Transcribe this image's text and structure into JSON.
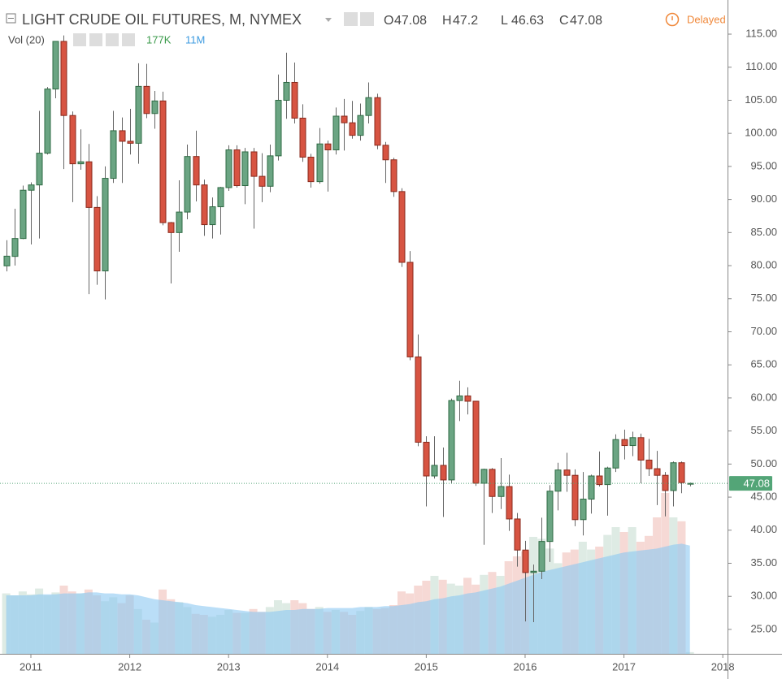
{
  "chart_data": {
    "type": "candlestick",
    "title": "LIGHT CRUDE OIL FUTURES, M, NYMEX",
    "ohlc_labels": [
      "O",
      "H",
      "L",
      "C"
    ],
    "status": "Delayed",
    "volume_legend": {
      "label": "Vol (20)",
      "volume": "177K",
      "ma": "11M"
    },
    "x": [
      2010.75,
      2010.833,
      2010.917,
      2011.0,
      2011.083,
      2011.167,
      2011.25,
      2011.333,
      2011.417,
      2011.5,
      2011.583,
      2011.667,
      2011.75,
      2011.833,
      2011.917,
      2012.0,
      2012.083,
      2012.167,
      2012.25,
      2012.333,
      2012.417,
      2012.5,
      2012.583,
      2012.667,
      2012.75,
      2012.833,
      2012.917,
      2013.0,
      2013.083,
      2013.167,
      2013.25,
      2013.333,
      2013.417,
      2013.5,
      2013.583,
      2013.667,
      2013.75,
      2013.833,
      2013.917,
      2014.0,
      2014.083,
      2014.167,
      2014.25,
      2014.333,
      2014.417,
      2014.5,
      2014.583,
      2014.667,
      2014.75,
      2014.833,
      2014.917,
      2015.0,
      2015.083,
      2015.167,
      2015.25,
      2015.333,
      2015.417,
      2015.5,
      2015.583,
      2015.667,
      2015.75,
      2015.833,
      2015.917,
      2016.0,
      2016.083,
      2016.167,
      2016.25,
      2016.333,
      2016.417,
      2016.5,
      2016.583,
      2016.667,
      2016.75,
      2016.833,
      2016.917,
      2017.0,
      2017.083,
      2017.167,
      2017.25,
      2017.333,
      2017.417,
      2017.5,
      2017.583,
      2017.667
    ],
    "open": [
      79.97,
      81.4,
      84.1,
      91.4,
      92.2,
      97.0,
      106.7,
      113.9,
      102.7,
      95.4,
      95.7,
      88.8,
      79.2,
      93.2,
      100.4,
      98.8,
      98.5,
      107.1,
      103.0,
      104.9,
      86.5,
      85.0,
      88.1,
      96.5,
      92.2,
      86.2,
      88.9,
      91.8,
      97.5,
      92.1,
      97.2,
      93.5,
      92.0,
      96.6,
      105.0,
      107.7,
      102.3,
      96.4,
      92.7,
      98.4,
      97.5,
      102.6,
      101.6,
      99.7,
      102.7,
      105.4,
      98.2,
      96.0,
      91.2,
      80.5,
      66.2,
      53.3,
      48.2,
      49.8,
      47.6,
      59.6,
      60.3,
      59.5,
      47.1,
      49.2,
      45.1,
      46.6,
      41.7,
      37.0,
      33.6,
      33.8,
      38.3,
      45.9,
      49.1,
      48.3,
      41.6,
      44.7,
      48.2,
      46.9,
      49.4,
      53.7,
      52.8,
      54.0,
      50.6,
      49.3,
      48.3,
      46.0,
      50.2,
      47.08
    ],
    "high": [
      83.85,
      88.6,
      92.1,
      92.6,
      103.4,
      107.0,
      113.9,
      114.8,
      103.3,
      100.6,
      98.4,
      90.5,
      95.0,
      103.4,
      102.4,
      103.7,
      110.6,
      110.5,
      106.4,
      106.3,
      86.6,
      92.9,
      98.3,
      100.4,
      93.0,
      90.3,
      91.9,
      98.2,
      98.2,
      97.8,
      97.8,
      97.0,
      98.3,
      108.9,
      112.2,
      110.7,
      104.4,
      96.9,
      100.8,
      98.9,
      103.9,
      105.2,
      104.9,
      104.5,
      107.7,
      106.0,
      98.7,
      96.3,
      91.7,
      82.2,
      69.6,
      54.2,
      54.2,
      52.5,
      59.9,
      62.6,
      61.6,
      59.5,
      49.3,
      49.4,
      50.9,
      48.4,
      42.6,
      38.4,
      34.8,
      41.9,
      46.8,
      50.2,
      51.7,
      49.2,
      48.8,
      48.4,
      51.9,
      49.6,
      54.5,
      55.2,
      54.9,
      54.6,
      53.8,
      52.0,
      48.8,
      50.4,
      50.4,
      47.2
    ],
    "low": [
      79.13,
      80.0,
      84.0,
      83.2,
      84.1,
      96.8,
      105.3,
      94.6,
      89.6,
      94.5,
      75.7,
      77.1,
      74.9,
      92.5,
      92.5,
      96.8,
      95.4,
      102.3,
      100.7,
      86.1,
      77.3,
      82.1,
      87.0,
      89.7,
      84.5,
      84.1,
      84.7,
      91.3,
      91.8,
      89.3,
      85.6,
      89.6,
      91.1,
      95.9,
      102.2,
      101.5,
      95.7,
      91.8,
      92.4,
      91.2,
      96.8,
      97.4,
      99.2,
      98.9,
      101.5,
      97.6,
      92.5,
      90.4,
      79.8,
      65.7,
      52.7,
      43.6,
      47.8,
      42.0,
      47.1,
      56.5,
      57.5,
      46.7,
      37.8,
      42.6,
      43.2,
      39.9,
      34.5,
      26.2,
      26.1,
      32.6,
      35.2,
      43.0,
      45.8,
      40.6,
      39.2,
      42.5,
      46.6,
      42.2,
      48.8,
      50.7,
      51.2,
      47.1,
      48.2,
      43.8,
      42.1,
      43.6,
      45.6,
      46.63
    ],
    "close": [
      81.43,
      84.1,
      91.4,
      92.2,
      97.0,
      106.7,
      113.9,
      102.7,
      95.4,
      95.7,
      88.8,
      79.2,
      93.2,
      100.4,
      98.8,
      98.5,
      107.1,
      103.0,
      104.9,
      86.5,
      85.0,
      88.1,
      96.5,
      92.2,
      86.2,
      88.9,
      91.8,
      97.5,
      92.1,
      97.2,
      93.5,
      92.0,
      96.6,
      105.0,
      107.7,
      102.3,
      96.4,
      92.7,
      98.4,
      97.5,
      102.6,
      101.6,
      99.7,
      102.7,
      105.4,
      98.2,
      96.0,
      91.2,
      80.5,
      66.2,
      53.3,
      48.2,
      49.8,
      47.6,
      59.6,
      60.3,
      59.5,
      47.1,
      49.2,
      45.1,
      46.6,
      41.7,
      37.0,
      33.6,
      33.8,
      38.3,
      45.9,
      49.1,
      48.3,
      41.6,
      44.7,
      48.2,
      46.9,
      49.4,
      53.7,
      52.8,
      54.0,
      50.6,
      49.3,
      48.3,
      46.0,
      50.2,
      47.2,
      47.08
    ],
    "volume": [
      6.2,
      6.0,
      6.4,
      6.1,
      6.7,
      6.0,
      6.3,
      7.0,
      6.4,
      6.2,
      6.6,
      6.0,
      5.4,
      5.8,
      5.2,
      6.0,
      4.6,
      3.5,
      3.2,
      6.6,
      5.6,
      5.3,
      4.8,
      4.1,
      4.0,
      3.8,
      4.0,
      4.5,
      4.2,
      4.2,
      4.6,
      4.3,
      4.8,
      5.5,
      5.2,
      5.5,
      5.2,
      4.6,
      4.8,
      4.3,
      4.5,
      4.3,
      4.0,
      4.4,
      4.8,
      4.6,
      4.7,
      5.0,
      6.4,
      6.2,
      7.0,
      7.5,
      8.0,
      7.6,
      7.2,
      7.0,
      7.8,
      7.1,
      8.1,
      8.4,
      8.0,
      9.5,
      10.0,
      10.5,
      12.0,
      11.8,
      10.8,
      9.3,
      10.4,
      10.7,
      11.5,
      10.7,
      11.0,
      12.2,
      13.0,
      12.5,
      13.0,
      11.5,
      12.1,
      14.0,
      16.5,
      14.0,
      13.6,
      0.177
    ],
    "volume_ma": [
      6.0,
      6.0,
      6.0,
      6.0,
      6.1,
      6.1,
      6.1,
      6.2,
      6.2,
      6.2,
      6.3,
      6.3,
      6.2,
      6.2,
      6.1,
      6.1,
      6.0,
      5.8,
      5.6,
      5.5,
      5.4,
      5.3,
      5.2,
      5.0,
      4.9,
      4.8,
      4.7,
      4.6,
      4.5,
      4.4,
      4.3,
      4.3,
      4.3,
      4.4,
      4.5,
      4.5,
      4.6,
      4.6,
      4.6,
      4.7,
      4.7,
      4.7,
      4.7,
      4.8,
      4.8,
      4.8,
      4.9,
      4.9,
      5.0,
      5.1,
      5.3,
      5.4,
      5.6,
      5.7,
      5.9,
      6.0,
      6.2,
      6.3,
      6.5,
      6.7,
      6.9,
      7.2,
      7.5,
      7.8,
      8.1,
      8.4,
      8.6,
      8.8,
      9.0,
      9.2,
      9.4,
      9.6,
      9.8,
      10.0,
      10.2,
      10.4,
      10.5,
      10.6,
      10.7,
      10.8,
      11.0,
      11.2,
      11.3,
      11.1
    ],
    "up_color": "#6ba583",
    "down_color": "#d75442",
    "volume_ma_color": "#8cc8f2",
    "xlim": [
      2010.6875,
      2018.048
    ],
    "xticks": [
      2011,
      2012,
      2013,
      2014,
      2015,
      2016,
      2017,
      2018
    ],
    "ylim": [
      21.31,
      120.16
    ],
    "yticks": [
      {
        "value": 25,
        "label": "25.00"
      },
      {
        "value": 30,
        "label": "30.00"
      },
      {
        "value": 35,
        "label": "35.00"
      },
      {
        "value": 40,
        "label": "40.00"
      },
      {
        "value": 45,
        "label": "45.00"
      },
      {
        "value": 50,
        "label": "50.00"
      },
      {
        "value": 55,
        "label": "55.00"
      },
      {
        "value": 60,
        "label": "60.00"
      },
      {
        "value": 65,
        "label": "65.00"
      },
      {
        "value": 70,
        "label": "70.00"
      },
      {
        "value": 75,
        "label": "75.00"
      },
      {
        "value": 80,
        "label": "80.00"
      },
      {
        "value": 85,
        "label": "85.00"
      },
      {
        "value": 90,
        "label": "90.00"
      },
      {
        "value": 95,
        "label": "95.00"
      },
      {
        "value": 100,
        "label": "100.00"
      },
      {
        "value": 105,
        "label": "105.00"
      },
      {
        "value": 110,
        "label": "110.00"
      },
      {
        "value": 115,
        "label": "115.00"
      }
    ],
    "grid": false
  }
}
